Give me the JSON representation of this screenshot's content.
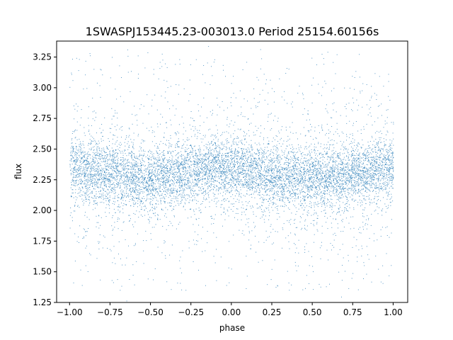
{
  "chart_data": {
    "type": "scatter",
    "title": "1SWASPJ153445.23-003013.0 Period 25154.60156s",
    "xlabel": "phase",
    "ylabel": "flux",
    "xlim": [
      -1.08,
      1.09
    ],
    "ylim": [
      1.25,
      3.38
    ],
    "x_ticks": [
      -1.0,
      -0.75,
      -0.5,
      -0.25,
      0.0,
      0.25,
      0.5,
      0.75,
      1.0
    ],
    "x_tick_labels": [
      "−1.00",
      "−0.75",
      "−0.50",
      "−0.25",
      "0.00",
      "0.25",
      "0.50",
      "0.75",
      "1.00"
    ],
    "y_ticks": [
      1.25,
      1.5,
      1.75,
      2.0,
      2.25,
      2.5,
      2.75,
      3.0,
      3.25
    ],
    "y_tick_labels": [
      "1.25",
      "1.50",
      "1.75",
      "2.00",
      "2.25",
      "2.50",
      "2.75",
      "3.00",
      "3.25"
    ],
    "grid": false,
    "legend": "none",
    "marker_color": "#1f77b4",
    "series": [
      {
        "phase_range": [
          -1.0,
          1.0
        ],
        "flux_profile": {
          "phase": [
            -1.0,
            -0.75,
            -0.5,
            -0.25,
            -0.15,
            0.0,
            0.25,
            0.5,
            0.65,
            0.75,
            1.0
          ],
          "mean_flux": [
            2.35,
            2.31,
            2.27,
            2.31,
            2.36,
            2.33,
            2.29,
            2.26,
            2.27,
            2.31,
            2.35
          ]
        },
        "core_spread": 0.3,
        "outlier_range": [
          1.35,
          3.3
        ]
      }
    ]
  }
}
